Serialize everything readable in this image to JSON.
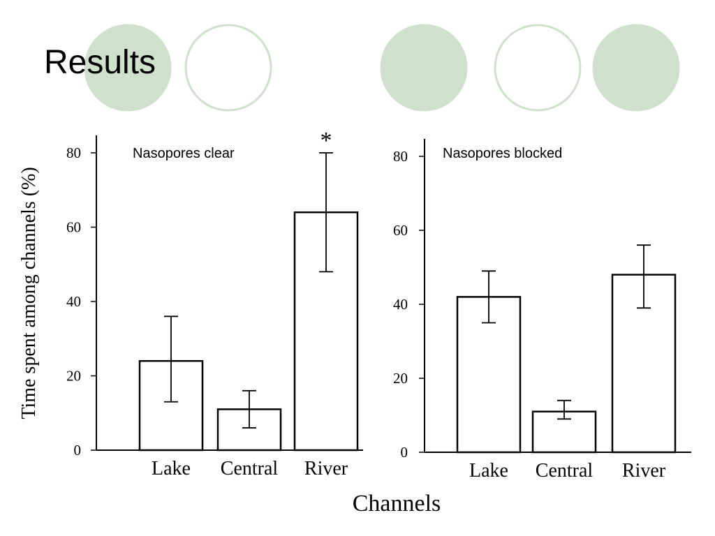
{
  "slide": {
    "title": "Results",
    "colors": {
      "circle_fill": "#cfe0cc",
      "circle_outline": "#cfe0cc",
      "bar_stroke": "#000000",
      "bar_fill": "#ffffff"
    }
  },
  "figure": {
    "ylabel": "Time spent among channels (%)",
    "xlabel": "Channels"
  },
  "chart_data": [
    {
      "type": "bar",
      "title": "Nasopores clear",
      "categories": [
        "Lake",
        "Central",
        "River"
      ],
      "values": [
        24,
        11,
        64
      ],
      "error_low": [
        13,
        6,
        48
      ],
      "error_high": [
        36,
        16,
        80
      ],
      "significance": [
        "",
        "",
        "*"
      ],
      "yticks": [
        "0",
        "20",
        "40",
        "60",
        "80"
      ],
      "ylim": [
        0,
        80
      ],
      "grid": false
    },
    {
      "type": "bar",
      "title": "Nasopores blocked",
      "categories": [
        "Lake",
        "Central",
        "River"
      ],
      "values": [
        42,
        11,
        48
      ],
      "error_low": [
        35,
        9,
        39
      ],
      "error_high": [
        49,
        14,
        56
      ],
      "significance": [
        "",
        "",
        ""
      ],
      "yticks": [
        "0",
        "20",
        "40",
        "60",
        "80"
      ],
      "ylim": [
        0,
        80
      ],
      "grid": false
    }
  ]
}
